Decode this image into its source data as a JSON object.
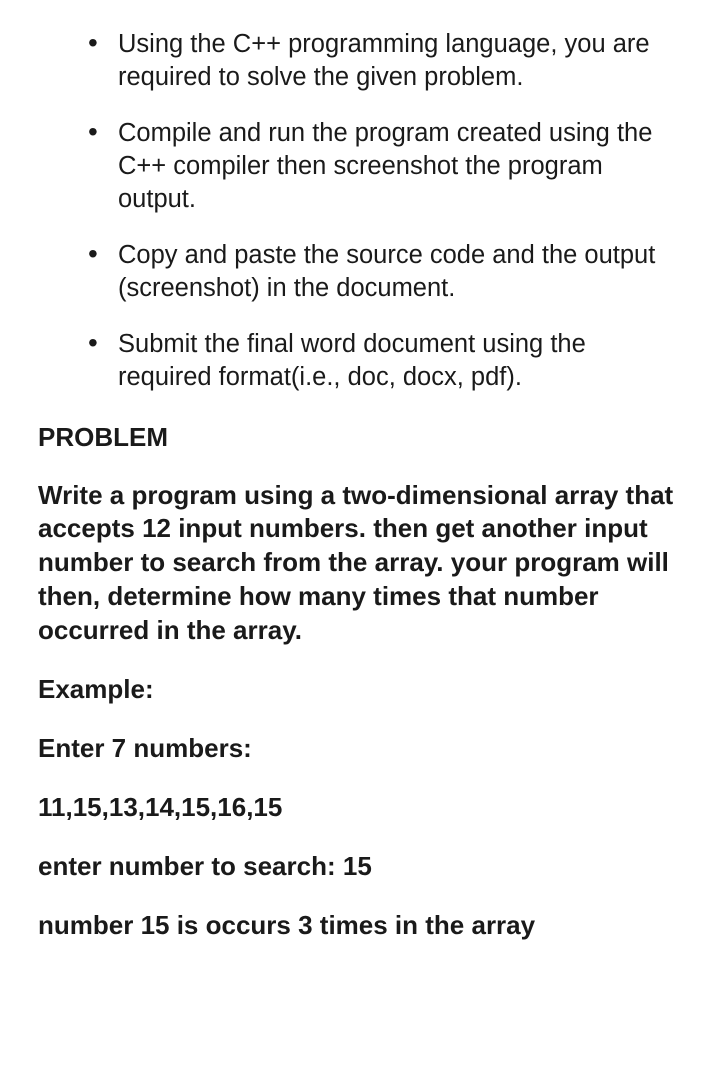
{
  "instructions": {
    "items": [
      "Using the C++ programming language, you are required to solve the given problem.",
      "Compile and run the program created using the C++ compiler then screenshot the program output.",
      "Copy and paste the source code and the output (screenshot) in the document.",
      "Submit the final word document using the required format(i.e., doc, docx, pdf)."
    ]
  },
  "problem": {
    "heading": "PROBLEM",
    "description": "Write a program using a two-dimensional array that accepts 12 input numbers. then get another input number to search from the array. your program will then, determine how many times that number occurred in the array."
  },
  "example": {
    "label": "Example:",
    "prompt_numbers": "Enter 7 numbers:",
    "numbers": "11,15,13,14,15,16,15",
    "search_prompt": "enter number to search: 15",
    "result": "number 15 is  occurs 3 times in the array"
  }
}
